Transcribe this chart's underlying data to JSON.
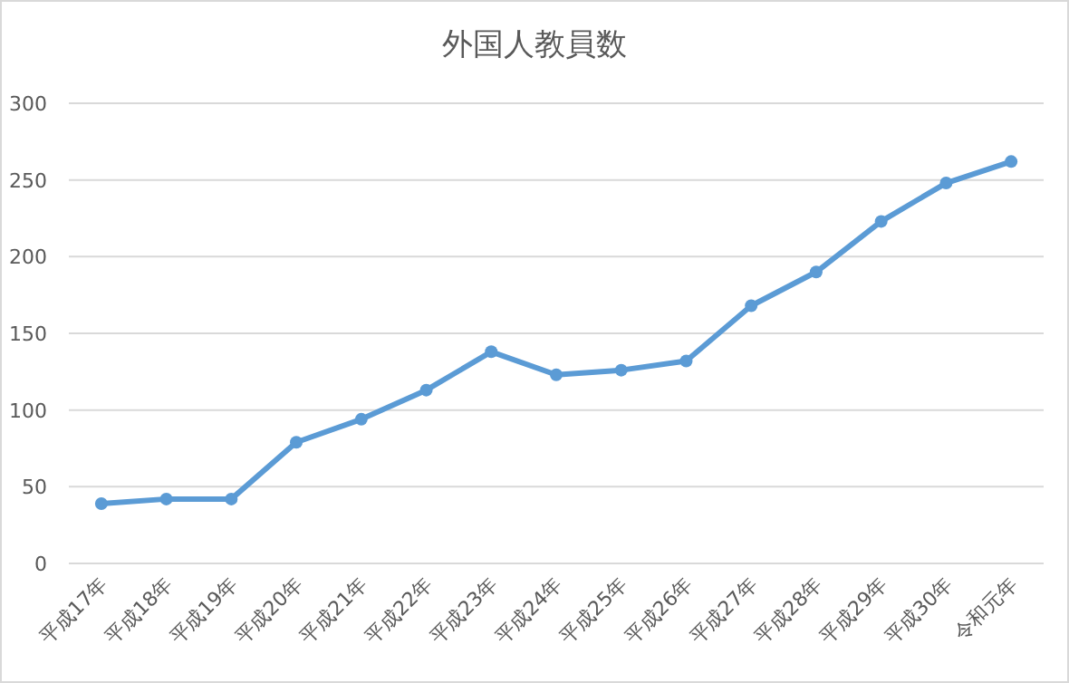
{
  "chart_data": {
    "type": "line",
    "title": "外国人教員数",
    "categories": [
      "平成17年",
      "平成18年",
      "平成19年",
      "平成20年",
      "平成21年",
      "平成22年",
      "平成23年",
      "平成24年",
      "平成25年",
      "平成26年",
      "平成27年",
      "平成28年",
      "平成29年",
      "平成30年",
      "令和元年"
    ],
    "series": [
      {
        "color": "#5b9bd5",
        "values": [
          39,
          42,
          42,
          79,
          94,
          113,
          138,
          123,
          126,
          132,
          168,
          190,
          223,
          248,
          262
        ]
      }
    ],
    "ylim": [
      0,
      300
    ],
    "yticks": [
      0,
      50,
      100,
      150,
      200,
      250,
      300
    ],
    "grid": "y",
    "marker": "circle",
    "line_style": "solid"
  }
}
